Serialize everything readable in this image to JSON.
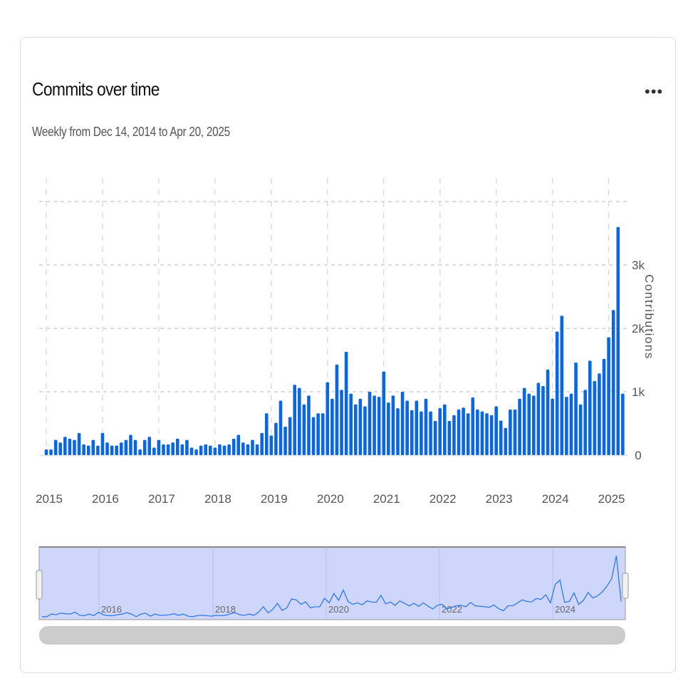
{
  "header": {
    "title": "Commits over time",
    "subtitle": "Weekly from Dec 14, 2014 to Apr 20, 2025",
    "menu_icon": "more-horizontal-icon",
    "menu_label": "•••"
  },
  "colors": {
    "bar": "#0b66e4",
    "grid": "#d9dde3",
    "navigator_fill": "#cfd6fb",
    "navigator_line": "#2f7ae5",
    "scrollbar": "#cccccc"
  },
  "navigator": {
    "labels": [
      "2016",
      "2018",
      "2020",
      "2022",
      "2024"
    ]
  },
  "chart_data": {
    "type": "bar",
    "title": "Commits over time",
    "subtitle": "Weekly from Dec 14, 2014 to Apr 20, 2025",
    "xlabel": "",
    "ylabel": "Contributions",
    "ylim": [
      0,
      4000
    ],
    "yticks": [
      0,
      1000,
      2000,
      3000
    ],
    "ytick_labels": [
      "0",
      "1k",
      "2k",
      "3k"
    ],
    "xtick_labels": [
      "2015",
      "2016",
      "2017",
      "2018",
      "2019",
      "2020",
      "2021",
      "2022",
      "2023",
      "2024",
      "2025"
    ],
    "grid": true,
    "start": "2015-01",
    "interval": "month",
    "values": [
      90,
      90,
      240,
      200,
      290,
      260,
      240,
      350,
      170,
      150,
      240,
      150,
      350,
      200,
      150,
      150,
      200,
      240,
      320,
      240,
      90,
      240,
      290,
      120,
      240,
      170,
      170,
      200,
      260,
      170,
      240,
      120,
      90,
      150,
      170,
      150,
      120,
      170,
      150,
      170,
      260,
      320,
      200,
      170,
      240,
      170,
      350,
      660,
      310,
      510,
      860,
      450,
      600,
      1110,
      1060,
      800,
      940,
      600,
      660,
      660,
      1150,
      890,
      1430,
      1030,
      1630,
      970,
      800,
      890,
      770,
      1000,
      940,
      920,
      1320,
      830,
      940,
      740,
      1000,
      860,
      710,
      860,
      690,
      890,
      690,
      540,
      740,
      800,
      540,
      630,
      720,
      750,
      660,
      910,
      720,
      690,
      660,
      630,
      770,
      545,
      430,
      720,
      720,
      890,
      1060,
      970,
      940,
      1140,
      1090,
      1350,
      890,
      1950,
      2200,
      920,
      970,
      1460,
      800,
      1030,
      1490,
      1170,
      1290,
      1520,
      1860,
      2290,
      3600,
      970
    ]
  }
}
